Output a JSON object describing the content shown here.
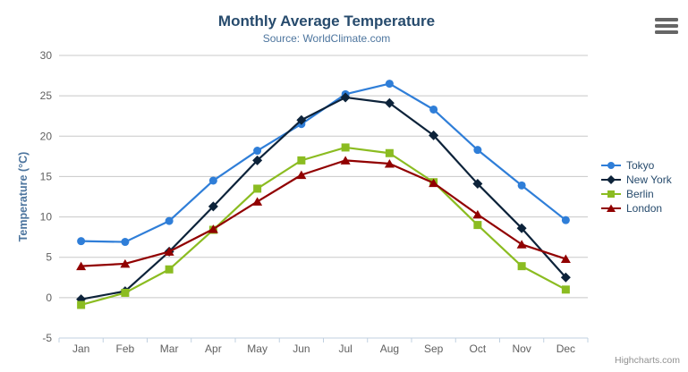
{
  "title": "Monthly Average Temperature",
  "subtitle": "Source: WorldClimate.com",
  "credits": "Highcharts.com",
  "context_menu_icon": "hamburger-icon",
  "colors": {
    "title": "#274b6d",
    "subtitle": "#4d759e",
    "axis_title": "#4d759e",
    "axis_labels": "#606060",
    "gridline": "#c8c8c8",
    "axis_line": "#c0d0e0",
    "legend_text": "#274b6d",
    "credits": "#909090",
    "menu_icon": "#666666"
  },
  "chart_data": {
    "type": "line",
    "title": "Monthly Average Temperature",
    "subtitle": "Source: WorldClimate.com",
    "categories": [
      "Jan",
      "Feb",
      "Mar",
      "Apr",
      "May",
      "Jun",
      "Jul",
      "Aug",
      "Sep",
      "Oct",
      "Nov",
      "Dec"
    ],
    "xlabel": "",
    "ylabel": "Temperature (°C)",
    "ylim": [
      -5,
      30
    ],
    "ytick_interval": 5,
    "grid": true,
    "legend_position": "right-middle",
    "series": [
      {
        "name": "Tokyo",
        "color": "#2f7ed8",
        "marker": "circle",
        "values": [
          7.0,
          6.9,
          9.5,
          14.5,
          18.2,
          21.5,
          25.2,
          26.5,
          23.3,
          18.3,
          13.9,
          9.6
        ]
      },
      {
        "name": "New York",
        "color": "#0d233a",
        "marker": "diamond",
        "values": [
          -0.2,
          0.8,
          5.7,
          11.3,
          17.0,
          22.0,
          24.8,
          24.1,
          20.1,
          14.1,
          8.6,
          2.5
        ]
      },
      {
        "name": "Berlin",
        "color": "#8bbc21",
        "marker": "square",
        "values": [
          -0.9,
          0.6,
          3.5,
          8.4,
          13.5,
          17.0,
          18.6,
          17.9,
          14.3,
          9.0,
          3.9,
          1.0
        ]
      },
      {
        "name": "London",
        "color": "#910000",
        "marker": "triangle",
        "values": [
          3.9,
          4.2,
          5.7,
          8.5,
          11.9,
          15.2,
          17.0,
          16.6,
          14.2,
          10.3,
          6.6,
          4.8
        ]
      }
    ]
  }
}
